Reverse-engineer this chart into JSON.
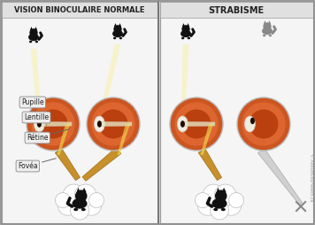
{
  "title_left": "VISION BINOCULAIRE NORMALE",
  "title_right": "STRABISME",
  "labels": [
    "Pupille",
    "Lentille",
    "Rétine",
    "Fovéa"
  ],
  "watermark": "© AboutKidsHealth.ca",
  "bg_color": "#e8e8e8",
  "panel_bg": "#f5f5f5",
  "border_color": "#999999",
  "eye_outer": "#cc5520",
  "eye_mid": "#dd6630",
  "eye_inner": "#bb4010",
  "eye_edge": "#bbbbbb",
  "sclera_color": "#f0ece0",
  "pupil_color": "#1a0a00",
  "lens_color": "#e8e4c0",
  "beam_color": "#f0e060",
  "beam_light": "#fffff0",
  "nerve_color": "#c8902a",
  "nerve_edge": "#a07020",
  "cloud_color": "#ffffff",
  "cloud_edge": "#bbbbbb",
  "cat_color": "#111111",
  "label_bg": "#eeeeee",
  "label_edge": "#888888",
  "divider_color": "#777777",
  "watermark_color": "#999999",
  "strab_nerve_color": "#d0d0d0",
  "strab_nerve_edge": "#aaaaaa"
}
